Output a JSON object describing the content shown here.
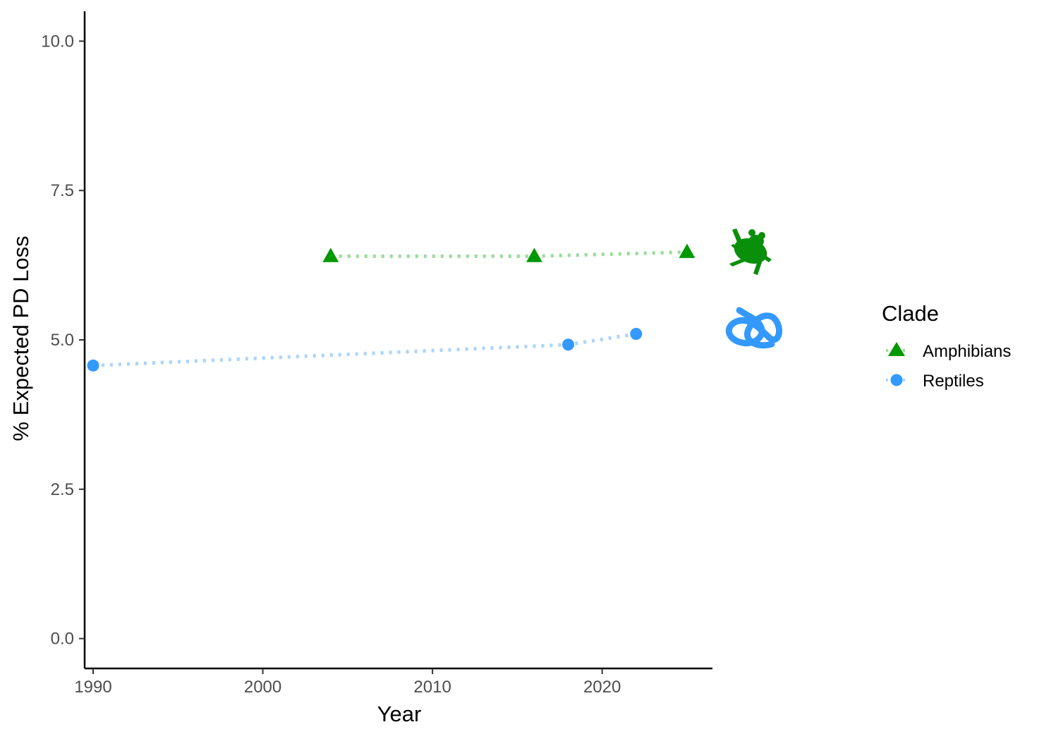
{
  "chart_data": {
    "type": "line",
    "xlabel": "Year",
    "ylabel": "% Expected PD Loss",
    "xlim": [
      1989.5,
      2026.5
    ],
    "ylim": [
      -0.5,
      10.5
    ],
    "x_ticks": [
      1990,
      2000,
      2010,
      2020
    ],
    "y_ticks": [
      0,
      2.5,
      5,
      7.5,
      10
    ],
    "y_tick_labels": [
      "0.0",
      "2.5",
      "5.0",
      "7.5",
      "10.0"
    ],
    "grid": false,
    "line_style": "dotted",
    "legend": {
      "title": "Clade",
      "placement": "right"
    },
    "series": [
      {
        "name": "Amphibians",
        "color": "#009900",
        "line_color": "#99dd99",
        "marker": "triangle",
        "silhouette": "frog-icon",
        "x": [
          2004,
          2016,
          2025
        ],
        "y": [
          6.4,
          6.4,
          6.47
        ]
      },
      {
        "name": "Reptiles",
        "color": "#3399ff",
        "line_color": "#aad4ff",
        "marker": "circle",
        "silhouette": "snake-icon",
        "x": [
          1990,
          2018,
          2022
        ],
        "y": [
          4.57,
          4.92,
          5.1
        ]
      }
    ]
  }
}
